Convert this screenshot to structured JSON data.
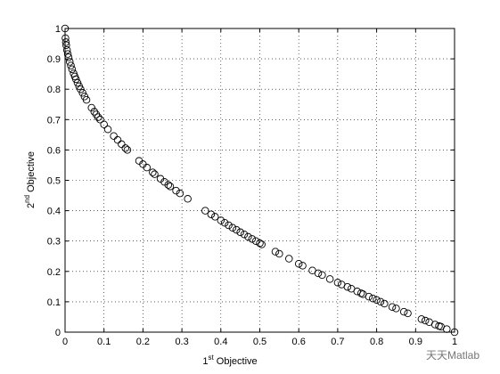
{
  "chart_data": {
    "type": "scatter",
    "xlabel": {
      "number": "1",
      "superscript": "st",
      "text": " Objective"
    },
    "ylabel": {
      "number": "2",
      "superscript": "nd",
      "text": " Objective"
    },
    "watermark": "天天Matlab",
    "marker": "open-circle",
    "color": "#000000",
    "grid": true,
    "xlim": [
      0,
      1
    ],
    "ylim": [
      0,
      1
    ],
    "xticks": [
      0,
      0.1,
      0.2,
      0.3,
      0.4,
      0.5,
      0.6,
      0.7,
      0.8,
      0.9,
      1
    ],
    "yticks": [
      0,
      0.1,
      0.2,
      0.3,
      0.4,
      0.5,
      0.6,
      0.7,
      0.8,
      0.9,
      1
    ],
    "x": [
      0,
      0.001,
      0.002,
      0.003,
      0.005,
      0.007,
      0.009,
      0.012,
      0.015,
      0.018,
      0.022,
      0.025,
      0.028,
      0.032,
      0.036,
      0.04,
      0.045,
      0.05,
      0.055,
      0.068,
      0.075,
      0.08,
      0.085,
      0.09,
      0.1,
      0.11,
      0.125,
      0.135,
      0.145,
      0.155,
      0.16,
      0.19,
      0.2,
      0.21,
      0.225,
      0.23,
      0.245,
      0.255,
      0.265,
      0.27,
      0.285,
      0.295,
      0.315,
      0.36,
      0.375,
      0.385,
      0.4,
      0.41,
      0.42,
      0.43,
      0.44,
      0.45,
      0.46,
      0.47,
      0.48,
      0.49,
      0.5,
      0.505,
      0.54,
      0.55,
      0.575,
      0.6,
      0.61,
      0.635,
      0.65,
      0.66,
      0.68,
      0.7,
      0.71,
      0.725,
      0.735,
      0.75,
      0.76,
      0.765,
      0.78,
      0.79,
      0.8,
      0.81,
      0.82,
      0.84,
      0.85,
      0.87,
      0.88,
      0.915,
      0.925,
      0.935,
      0.95,
      0.96,
      0.965,
      0.98,
      1.0
    ],
    "y": [
      1,
      0.968,
      0.955,
      0.945,
      0.929,
      0.916,
      0.905,
      0.89,
      0.878,
      0.866,
      0.852,
      0.842,
      0.833,
      0.821,
      0.81,
      0.8,
      0.788,
      0.776,
      0.765,
      0.739,
      0.726,
      0.717,
      0.708,
      0.7,
      0.684,
      0.668,
      0.646,
      0.633,
      0.619,
      0.606,
      0.6,
      0.564,
      0.553,
      0.542,
      0.526,
      0.52,
      0.505,
      0.495,
      0.485,
      0.48,
      0.466,
      0.457,
      0.439,
      0.4,
      0.388,
      0.38,
      0.368,
      0.36,
      0.352,
      0.344,
      0.337,
      0.329,
      0.322,
      0.314,
      0.307,
      0.3,
      0.293,
      0.289,
      0.265,
      0.258,
      0.242,
      0.225,
      0.219,
      0.203,
      0.194,
      0.188,
      0.175,
      0.163,
      0.157,
      0.149,
      0.143,
      0.134,
      0.128,
      0.125,
      0.117,
      0.111,
      0.106,
      0.1,
      0.094,
      0.083,
      0.078,
      0.067,
      0.062,
      0.043,
      0.038,
      0.033,
      0.025,
      0.02,
      0.018,
      0.01,
      0
    ]
  }
}
